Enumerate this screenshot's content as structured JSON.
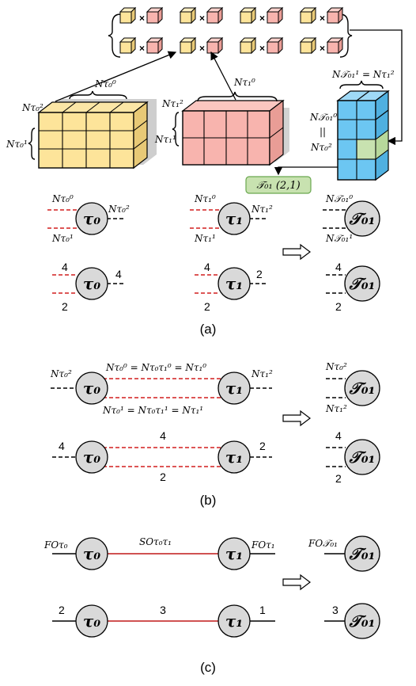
{
  "panel_a": {
    "caption": "(a)",
    "tensor_pairs_count": 8,
    "cube_labels": {
      "t0_top": "Nτ₀⁰",
      "t0_left": "Nτ₀²",
      "t0_side": "Nτ₀¹",
      "t1_top": "Nτ₁⁰",
      "t1_left": "Nτ₁²",
      "t1_side": "Nτ₁¹",
      "merged_top": "N𝒯₀₁¹ = Nτ₁²",
      "merged_side_top": "N𝒯₀₁⁰",
      "merged_side_eq": "||",
      "merged_side_bottom": "Nτ₀²"
    },
    "element_tag": "𝒯₀₁ (2,1)",
    "row1": {
      "t0": {
        "node": "τ₀",
        "left_top": "Nτ₀⁰",
        "left_bottom": "Nτ₀¹",
        "right": "Nτ₀²"
      },
      "t1": {
        "node": "τ₁",
        "left_top": "Nτ₁⁰",
        "left_bottom": "Nτ₁¹",
        "right": "Nτ₁²"
      },
      "t01": {
        "node": "𝒯₀₁",
        "left_top": "N𝒯₀₁⁰",
        "left_bottom": "N𝒯₀₁¹"
      }
    },
    "row2": {
      "t0": {
        "node": "τ₀",
        "left_top": "4",
        "left_bottom": "2",
        "right": "4"
      },
      "t1": {
        "node": "τ₁",
        "left_top": "4",
        "left_bottom": "2",
        "right": "2"
      },
      "t01": {
        "node": "𝒯₀₁",
        "left_top": "4",
        "left_bottom": "2"
      }
    }
  },
  "panel_b": {
    "caption": "(b)",
    "row1": {
      "t0_node": "τ₀",
      "t1_node": "τ₁",
      "t0_left": "Nτ₀²",
      "t1_right": "Nτ₁²",
      "top_eq": "Nτ₀⁰ = Nτ₀τ₁⁰ = Nτ₁⁰",
      "bottom_eq": "Nτ₀¹ = Nτ₀τ₁¹ = Nτ₁¹",
      "t01_node": "𝒯₀₁",
      "t01_top": "Nτ₀²",
      "t01_bottom": "Nτ₁²"
    },
    "row2": {
      "t0_node": "τ₀",
      "t1_node": "τ₁",
      "t0_left": "4",
      "t1_right": "2",
      "mid_top": "4",
      "mid_bottom": "2",
      "t01_node": "𝒯₀₁",
      "t01_top": "4",
      "t01_bottom": "2"
    }
  },
  "panel_c": {
    "caption": "(c)",
    "row1": {
      "t0_node": "τ₀",
      "t1_node": "τ₁",
      "t0_left": "FOτ₀",
      "mid": "SOτ₀τ₁",
      "t1_right": "FOτ₁",
      "t01_node": "𝒯₀₁",
      "t01_left": "FO𝒯₀₁"
    },
    "row2": {
      "t0_node": "τ₀",
      "t1_node": "τ₁",
      "t0_left": "2",
      "mid": "3",
      "t1_right": "1",
      "t01_node": "𝒯₀₁",
      "t01_left": "3"
    }
  },
  "colors": {
    "yellow": "#fde49a",
    "pink": "#f8b4ae",
    "blue": "#6cc6f2",
    "green": "#c8e2b0",
    "node_fill": "#d9d9d9"
  }
}
